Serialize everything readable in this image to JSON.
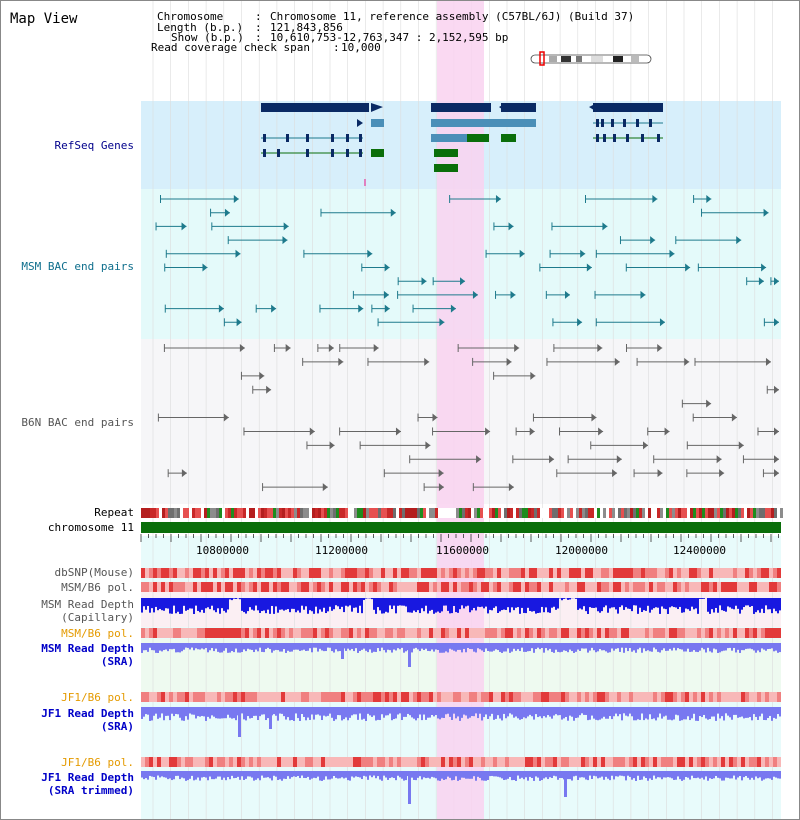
{
  "page": {
    "title": "Map View"
  },
  "info": {
    "chromosome_label": "Chromosome",
    "chromosome_value": "Chromosome 11, reference assembly (C57BL/6J) (Build 37)",
    "length_label": "Length (b.p.)",
    "length_value": "121,843,856",
    "show_label": "Show (b.p.)",
    "show_value": "10,610,753-12,763,347 : 2,152,595 bp",
    "span_label": "Read coverage check span",
    "span_value": "10,000"
  },
  "tracks": {
    "refseq": "RefSeq Genes",
    "msm_bac": "MSM BAC end pairs",
    "b6n_bac": "B6N BAC end pairs",
    "repeat": "Repeat",
    "chromosome": "chromosome 11",
    "dbsnp": "dbSNP(Mouse)",
    "msm_b6_pol_1": "MSM/B6 pol.",
    "msm_read_depth_cap_1": "MSM Read Depth",
    "msm_read_depth_cap_2": "(Capillary)",
    "msm_b6_pol_2": "MSM/B6 pol.",
    "msm_read_depth_sra_1": "MSM Read Depth",
    "msm_read_depth_sra_2": "(SRA)",
    "jf1_b6_pol_1": "JF1/B6 pol.",
    "jf1_read_depth_sra_1": "JF1 Read Depth",
    "jf1_read_depth_sra_2": "(SRA)",
    "jf1_b6_pol_2": "JF1/B6 pol.",
    "jf1_read_depth_trim_1": "JF1 Read Depth",
    "jf1_read_depth_trim_2": "(SRA trimmed)"
  },
  "axis": {
    "ticks": [
      "10800000",
      "11200000",
      "11600000",
      "12000000",
      "12400000"
    ]
  },
  "colors": {
    "highlight": "#f9d2f0",
    "refseq_bg": "#d7effb",
    "msm_bac_bg": "#e4fafa",
    "gene_dark": "#0a2a64",
    "gene_light": "#4a8fb8",
    "gene_green": "#0a6e0a",
    "msm_bac_line": "#1e7a8c",
    "b6n_line": "#666666",
    "chromosome": "#0a6e0a",
    "depth_blue": "#1818e0",
    "depth_light": "#7878f0",
    "label_refseq": "#00008b",
    "label_msm": "#0e6e8c",
    "label_b6n": "#555555",
    "label_orange": "#e49a00",
    "label_blue": "#0000c8"
  }
}
